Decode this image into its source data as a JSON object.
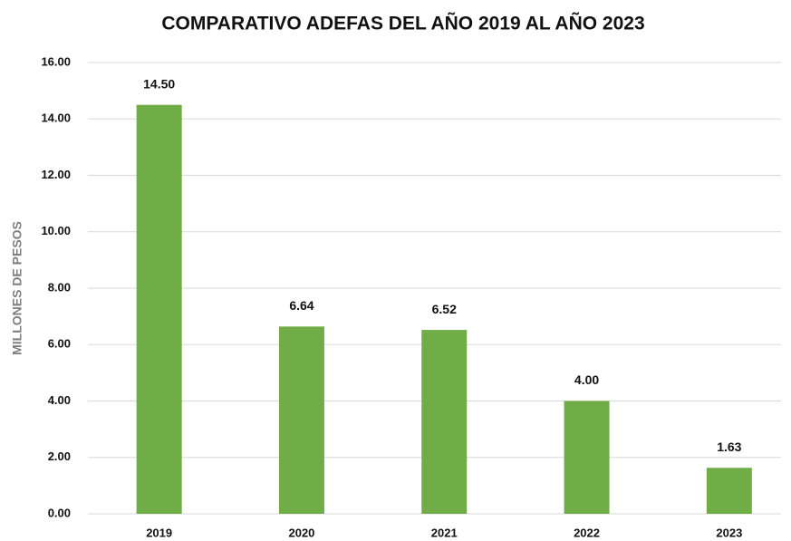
{
  "chart_data": {
    "type": "bar",
    "title": "COMPARATIVO ADEFAS DEL AÑO 2019 AL AÑO 2023",
    "y_label": "MILLONES DE PESOS",
    "categories": [
      "2019",
      "2020",
      "2021",
      "2022",
      "2023"
    ],
    "values": [
      14.5,
      6.64,
      6.52,
      4.0,
      1.63
    ],
    "value_labels": [
      "14.50",
      "6.64",
      "6.52",
      "4.00",
      "1.63"
    ],
    "color": "#70ad47",
    "ylim": [
      0,
      16
    ],
    "yticks": [
      {
        "value": 0,
        "label": "0.00"
      },
      {
        "value": 2,
        "label": "2.00"
      },
      {
        "value": 4,
        "label": "4.00"
      },
      {
        "value": 6,
        "label": "6.00"
      },
      {
        "value": 8,
        "label": "8.00"
      },
      {
        "value": 10,
        "label": "10.00"
      },
      {
        "value": 12,
        "label": "12.00"
      },
      {
        "value": 14,
        "label": "14.00"
      },
      {
        "value": 16,
        "label": "16.00"
      }
    ],
    "grid": true
  }
}
